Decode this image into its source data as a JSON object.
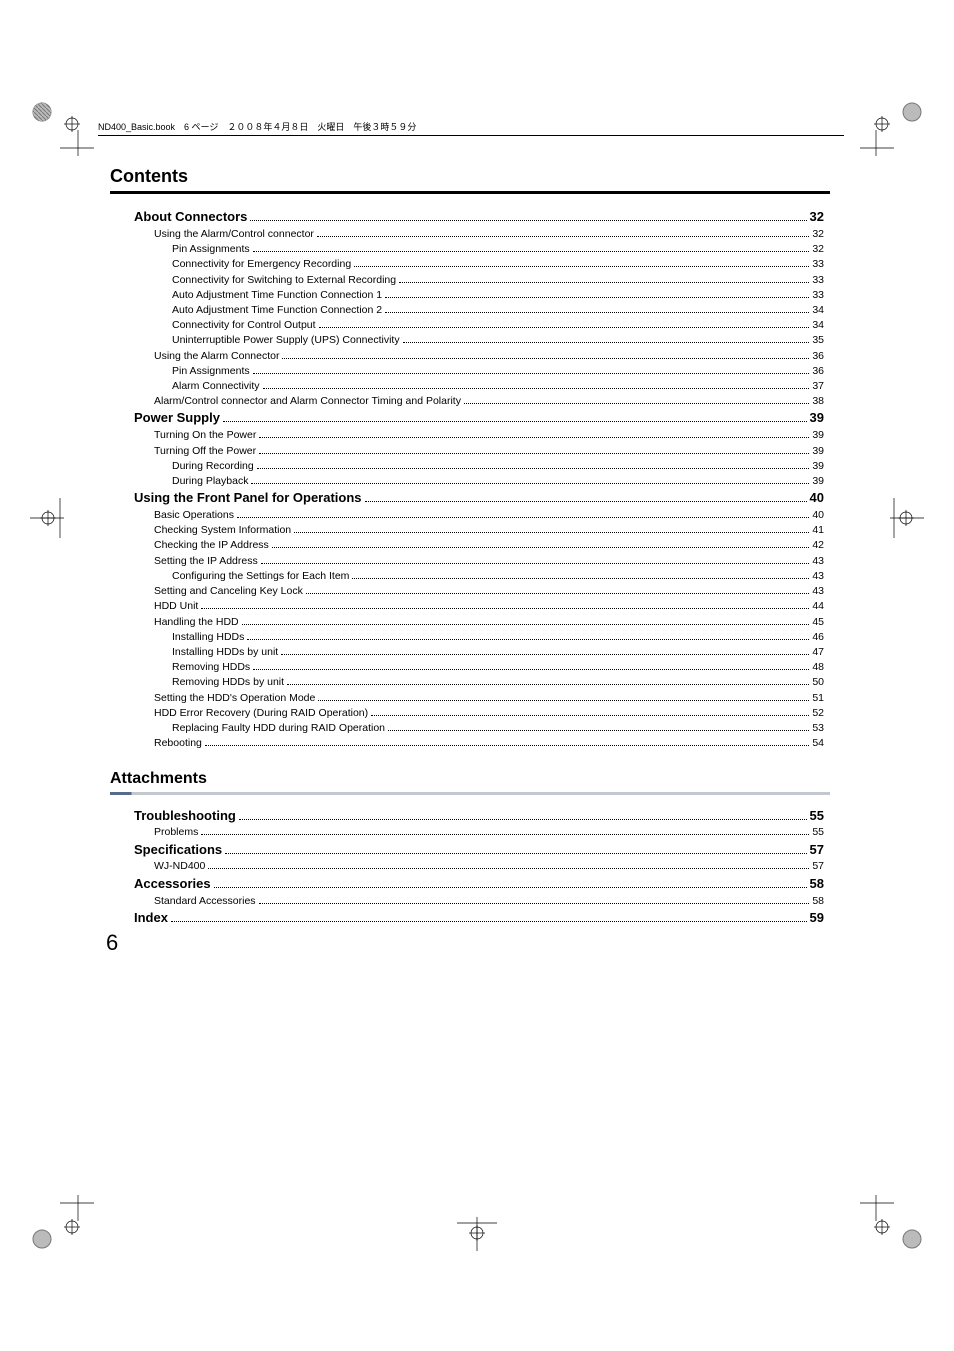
{
  "header_line": "ND400_Basic.book　6 ページ　２００８年４月８日　火曜日　午後３時５９分",
  "title": "Contents",
  "section_head": "Attachments",
  "page_number": "6",
  "toc1": [
    {
      "lvl": 0,
      "label": "About Connectors",
      "page": "32"
    },
    {
      "lvl": 1,
      "label": "Using the Alarm/Control connector",
      "page": "32"
    },
    {
      "lvl": 2,
      "label": "Pin Assignments",
      "page": "32"
    },
    {
      "lvl": 2,
      "label": "Connectivity for Emergency Recording",
      "page": "33"
    },
    {
      "lvl": 2,
      "label": "Connectivity for Switching to External Recording",
      "page": "33"
    },
    {
      "lvl": 2,
      "label": "Auto Adjustment Time Function Connection 1",
      "page": "33"
    },
    {
      "lvl": 2,
      "label": "Auto Adjustment Time Function Connection 2",
      "page": "34"
    },
    {
      "lvl": 2,
      "label": "Connectivity for Control Output",
      "page": "34"
    },
    {
      "lvl": 2,
      "label": "Uninterruptible Power Supply (UPS) Connectivity",
      "page": "35"
    },
    {
      "lvl": 1,
      "label": "Using the Alarm Connector",
      "page": "36"
    },
    {
      "lvl": 2,
      "label": "Pin Assignments",
      "page": "36"
    },
    {
      "lvl": 2,
      "label": "Alarm Connectivity",
      "page": "37"
    },
    {
      "lvl": 1,
      "label": "Alarm/Control connector and Alarm Connector Timing and Polarity",
      "page": "38"
    },
    {
      "lvl": 0,
      "label": "Power Supply",
      "page": "39"
    },
    {
      "lvl": 1,
      "label": "Turning On the Power",
      "page": "39"
    },
    {
      "lvl": 1,
      "label": "Turning Off the Power",
      "page": "39"
    },
    {
      "lvl": 2,
      "label": "During Recording",
      "page": "39"
    },
    {
      "lvl": 2,
      "label": "During Playback",
      "page": "39"
    },
    {
      "lvl": 0,
      "label": "Using the Front Panel for Operations",
      "page": "40"
    },
    {
      "lvl": 1,
      "label": "Basic Operations",
      "page": "40"
    },
    {
      "lvl": 1,
      "label": "Checking System Information",
      "page": "41"
    },
    {
      "lvl": 1,
      "label": "Checking the IP Address",
      "page": "42"
    },
    {
      "lvl": 1,
      "label": "Setting the IP Address",
      "page": "43"
    },
    {
      "lvl": 2,
      "label": "Configuring the Settings for Each Item",
      "page": "43"
    },
    {
      "lvl": 1,
      "label": "Setting and Canceling Key Lock",
      "page": "43"
    },
    {
      "lvl": 1,
      "label": "HDD Unit",
      "page": "44"
    },
    {
      "lvl": 1,
      "label": "Handling the HDD",
      "page": "45"
    },
    {
      "lvl": 2,
      "label": "Installing HDDs",
      "page": "46"
    },
    {
      "lvl": 2,
      "label": "Installing HDDs by unit",
      "page": "47"
    },
    {
      "lvl": 2,
      "label": "Removing HDDs",
      "page": "48"
    },
    {
      "lvl": 2,
      "label": "Removing HDDs by unit",
      "page": "50"
    },
    {
      "lvl": 1,
      "label": "Setting the HDD's Operation Mode",
      "page": "51"
    },
    {
      "lvl": 1,
      "label": "HDD Error Recovery (During RAID Operation)",
      "page": "52"
    },
    {
      "lvl": 2,
      "label": "Replacing Faulty HDD during RAID Operation",
      "page": "53"
    },
    {
      "lvl": 1,
      "label": "Rebooting",
      "page": "54"
    }
  ],
  "toc2": [
    {
      "lvl": 0,
      "label": "Troubleshooting",
      "page": "55"
    },
    {
      "lvl": 1,
      "label": "Problems",
      "page": "55"
    },
    {
      "lvl": 0,
      "label": "Specifications",
      "page": "57"
    },
    {
      "lvl": 1,
      "label": "WJ-ND400",
      "page": "57"
    },
    {
      "lvl": 0,
      "label": "Accessories",
      "page": "58"
    },
    {
      "lvl": 1,
      "label": "Standard Accessories",
      "page": "58"
    },
    {
      "lvl": 0,
      "label": "Index",
      "page": "59"
    }
  ]
}
